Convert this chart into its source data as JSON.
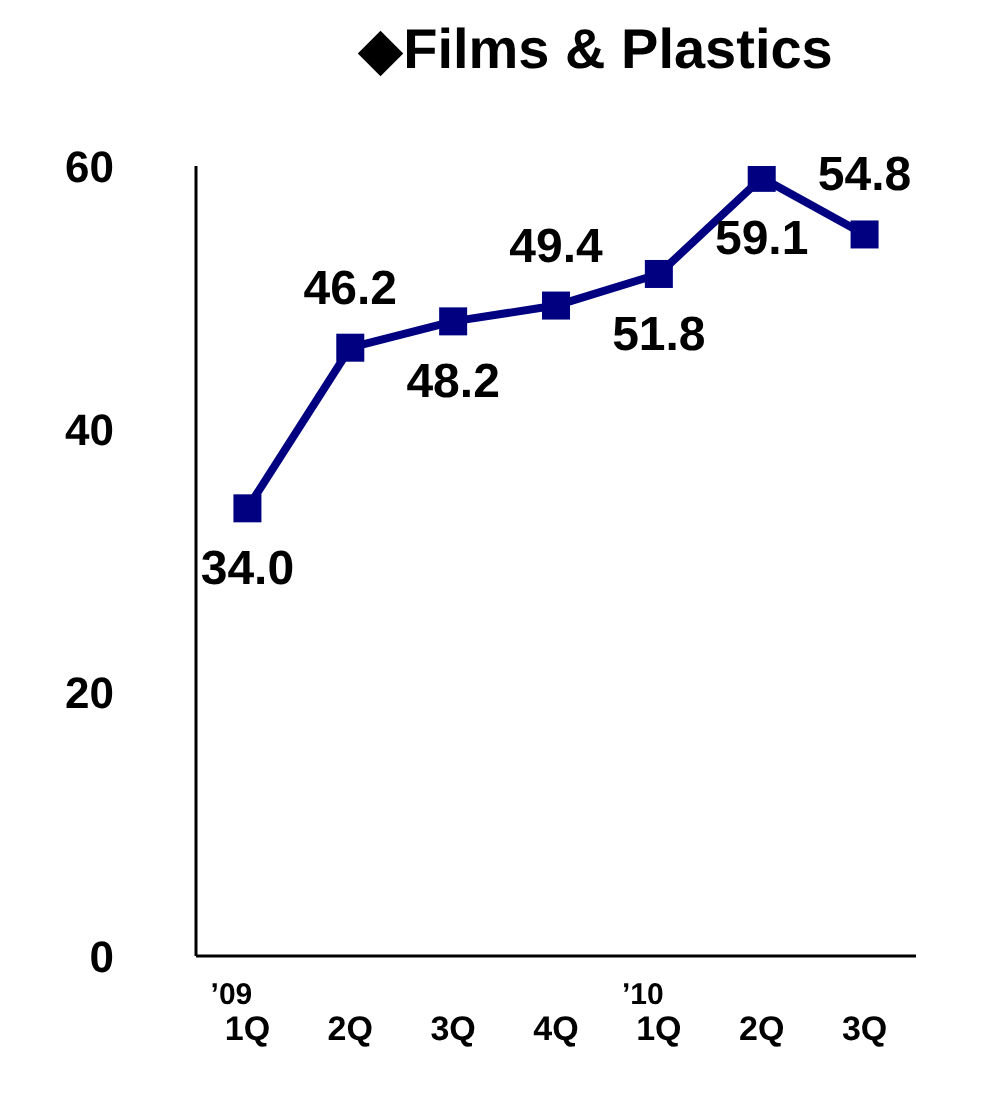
{
  "chart_data": {
    "type": "line",
    "title": "◆Films & Plastics",
    "categories": [
      "$^{’09}$1Q",
      "2Q",
      "3Q",
      "4Q",
      "$^{’10}$1Q",
      "2Q",
      "3Q"
    ],
    "series": [
      {
        "color": "#000080",
        "values": [
          34.0,
          46.2,
          48.2,
          49.4,
          51.8,
          59.1,
          54.8
        ],
        "value_labels": [
          "34.0",
          "46.2",
          "48.2",
          "49.4",
          "51.8",
          "59.1",
          "54.8"
        ]
      }
    ],
    "ylim": [
      0,
      60
    ],
    "yticks": [
      0,
      20,
      40,
      60
    ],
    "grid": false,
    "legend": false,
    "marker": "square",
    "line_style": "solid"
  }
}
